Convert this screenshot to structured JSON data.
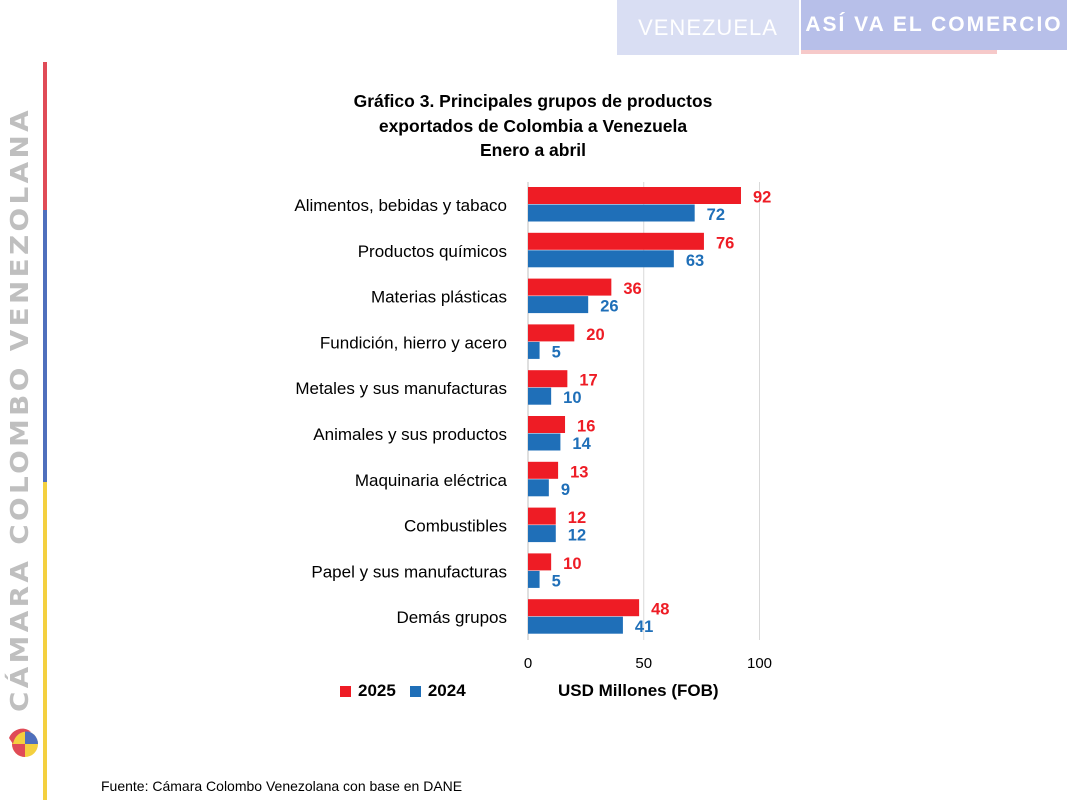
{
  "header": {
    "country_tab": "VENEZUELA",
    "section_tab": "ASÍ VA EL COMERCIO"
  },
  "brand": {
    "vertical_text": "CÁMARA COLOMBO VENEZOLANA"
  },
  "colors": {
    "series_2025": "#ee1c25",
    "series_2024": "#1f6fb8",
    "header_light": "#d9def3",
    "header_dark": "#b7bfe9"
  },
  "chart_data": {
    "type": "bar",
    "orientation": "horizontal",
    "title_lines": [
      "Gráfico 3. Principales grupos de productos",
      "exportados de Colombia a Venezuela",
      "Enero a abril"
    ],
    "categories": [
      "Alimentos, bebidas y tabaco",
      "Productos químicos",
      "Materias plásticas",
      "Fundición, hierro y acero",
      "Metales y sus manufacturas",
      "Animales y sus productos",
      "Maquinaria eléctrica",
      "Combustibles",
      "Papel y sus manufacturas",
      "Demás grupos"
    ],
    "series": [
      {
        "name": "2025",
        "values": [
          92,
          76,
          36,
          20,
          17,
          16,
          13,
          12,
          10,
          48
        ]
      },
      {
        "name": "2024",
        "values": [
          72,
          63,
          26,
          5,
          10,
          14,
          9,
          12,
          5,
          41
        ]
      }
    ],
    "xlabel": "USD Millones (FOB)",
    "xlim": [
      0,
      100
    ],
    "xticks": [
      "0",
      "50",
      "100"
    ],
    "grid": "vertical",
    "legend_position": "bottom-left"
  },
  "source_note": "Fuente: Cámara Colombo Venezolana con base en DANE"
}
